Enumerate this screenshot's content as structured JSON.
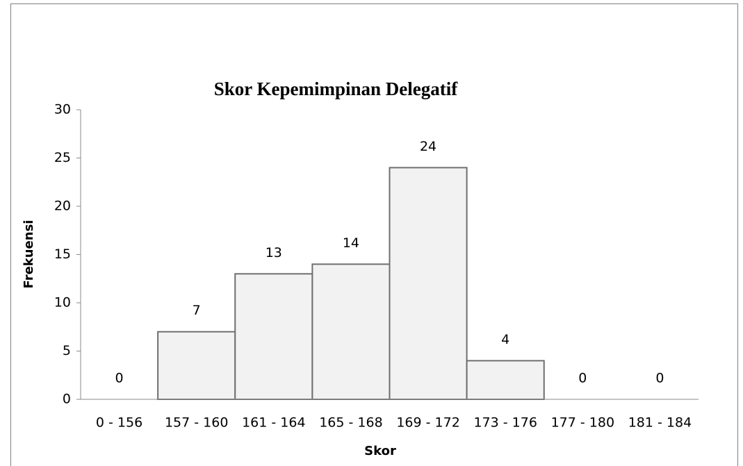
{
  "chart_data": {
    "type": "bar",
    "title": "Skor Kepemimpinan Delegatif",
    "x_label": "Skor",
    "y_label": "Frekuensi",
    "categories": [
      "0 - 156",
      "157 - 160",
      "161 - 164",
      "165 - 168",
      "169 - 172",
      "173 - 176",
      "177 - 180",
      "181 - 184"
    ],
    "values": [
      0,
      7,
      13,
      14,
      24,
      4,
      0,
      0
    ],
    "color": "#f2f2f2",
    "ylim": [
      0,
      30
    ],
    "yticks": [
      0,
      5,
      10,
      15,
      20,
      25,
      30
    ],
    "grid": false
  }
}
